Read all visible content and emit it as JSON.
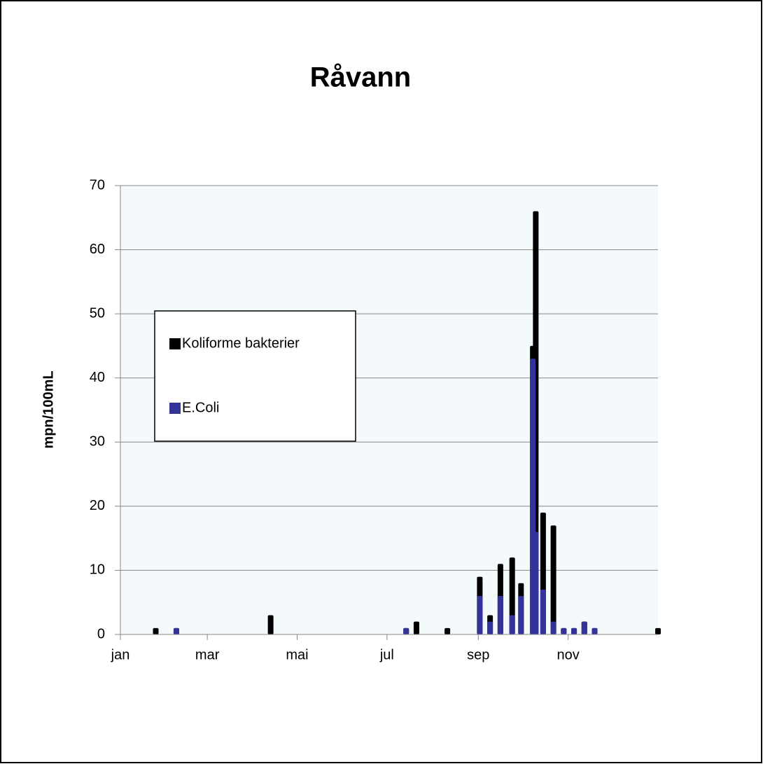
{
  "chart_data": {
    "type": "bar",
    "title": "Råvann",
    "y_label": "mpn/100mL",
    "x": [
      24,
      38,
      102,
      194,
      201,
      222,
      244,
      251,
      258,
      266,
      272,
      280,
      282,
      287,
      294,
      301,
      308,
      315,
      322,
      365
    ],
    "series": [
      {
        "name": "Koliforme bakterier",
        "color": "#000000",
        "values": [
          1,
          1,
          3,
          1,
          2,
          1,
          9,
          3,
          11,
          12,
          8,
          45,
          66,
          19,
          17,
          1,
          1,
          2,
          1,
          1
        ]
      },
      {
        "name": "E.Coli",
        "color": "#333399",
        "values": [
          0,
          1,
          0,
          1,
          0,
          0,
          6,
          2,
          6,
          3,
          6,
          43,
          16,
          7,
          2,
          1,
          1,
          2,
          1,
          0
        ]
      }
    ],
    "xlim": [
      0,
      365
    ],
    "xticks": [
      {
        "value": 0,
        "label": "jan"
      },
      {
        "value": 59,
        "label": "mar"
      },
      {
        "value": 120,
        "label": "mai"
      },
      {
        "value": 181,
        "label": "jul"
      },
      {
        "value": 243,
        "label": "sep"
      },
      {
        "value": 304,
        "label": "nov"
      }
    ],
    "ylim": [
      0,
      70
    ],
    "yticks": [
      0,
      10,
      20,
      30,
      40,
      50,
      60,
      70
    ],
    "grid": true,
    "legend": "left"
  }
}
